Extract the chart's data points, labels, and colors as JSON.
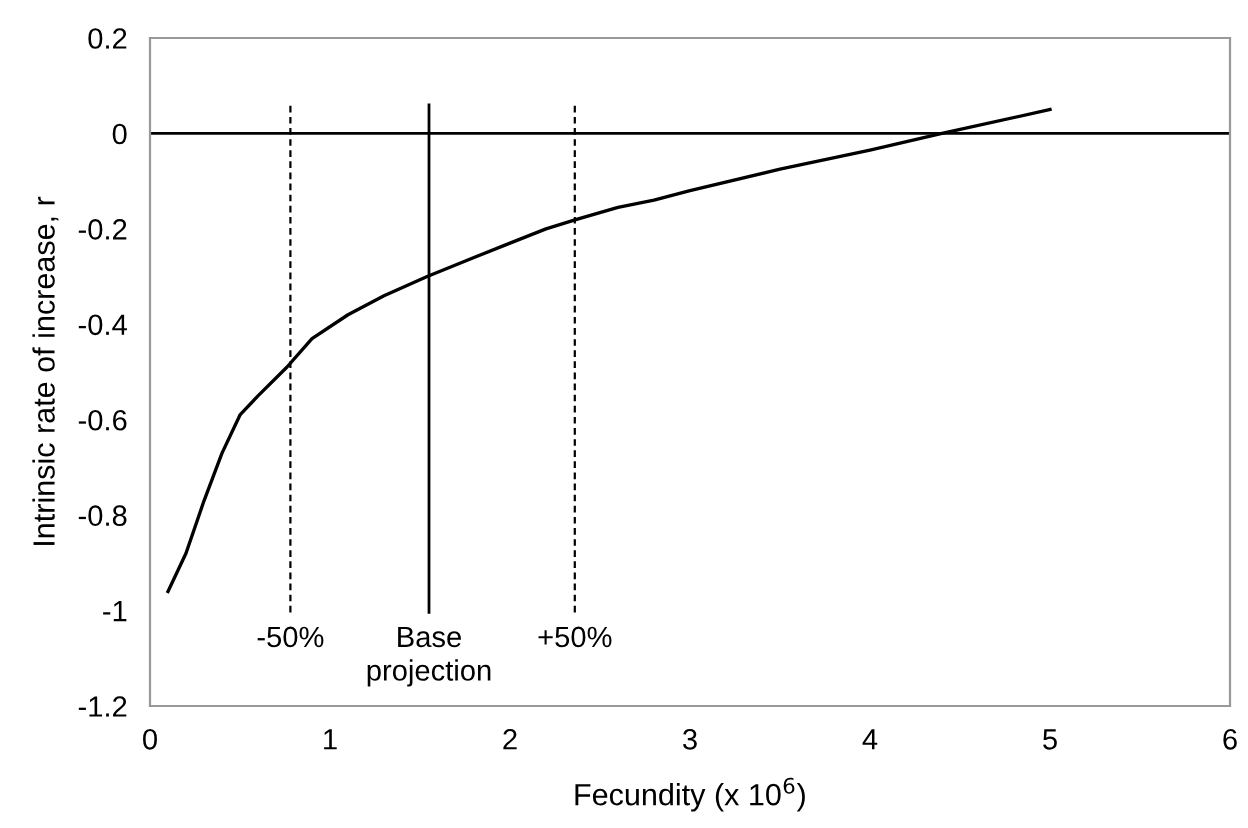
{
  "chart_data": {
    "type": "line",
    "xlabel": "Fecundity (x 10$^{6}$)",
    "ylabel": "Intrinsic rate of increase, r",
    "x": [
      0.1,
      0.2,
      0.3,
      0.4,
      0.5,
      0.6,
      0.76,
      0.9,
      1.1,
      1.3,
      1.54,
      1.8,
      2.0,
      2.2,
      2.37,
      2.6,
      2.8,
      3.0,
      3.5,
      4.0,
      4.4,
      5.0
    ],
    "values": [
      -0.96,
      -0.88,
      -0.77,
      -0.67,
      -0.59,
      -0.55,
      -0.49,
      -0.43,
      -0.38,
      -0.34,
      -0.3,
      -0.26,
      -0.23,
      -0.2,
      -0.18,
      -0.155,
      -0.14,
      -0.12,
      -0.075,
      -0.035,
      0.0,
      0.05
    ],
    "color": "#000000",
    "line_style": "solid",
    "marker": "none",
    "xlim": [
      0,
      6
    ],
    "xticks": [
      0,
      1,
      2,
      3,
      4,
      5,
      6
    ],
    "ylim": [
      -1.2,
      0.2
    ],
    "yticks": [
      -1.2,
      -1,
      -0.8,
      -0.6,
      -0.4,
      -0.2,
      0,
      0.2
    ],
    "ref_lines": [
      {
        "axis": "y",
        "value": 0,
        "label": null,
        "color": "#000000",
        "line_style": "solid"
      },
      {
        "axis": "x",
        "value": 0.78,
        "label": null,
        "color": "#000000",
        "line_style": "dashed"
      },
      {
        "axis": "x",
        "value": 1.55,
        "label": null,
        "color": "#000000",
        "line_style": "solid"
      },
      {
        "axis": "x",
        "value": 2.36,
        "label": null,
        "color": "#000000",
        "line_style": "dashed"
      }
    ],
    "annotations": [
      "-50%",
      "Base\nprojection",
      "+50%"
    ],
    "grid": false,
    "legend": false
  }
}
